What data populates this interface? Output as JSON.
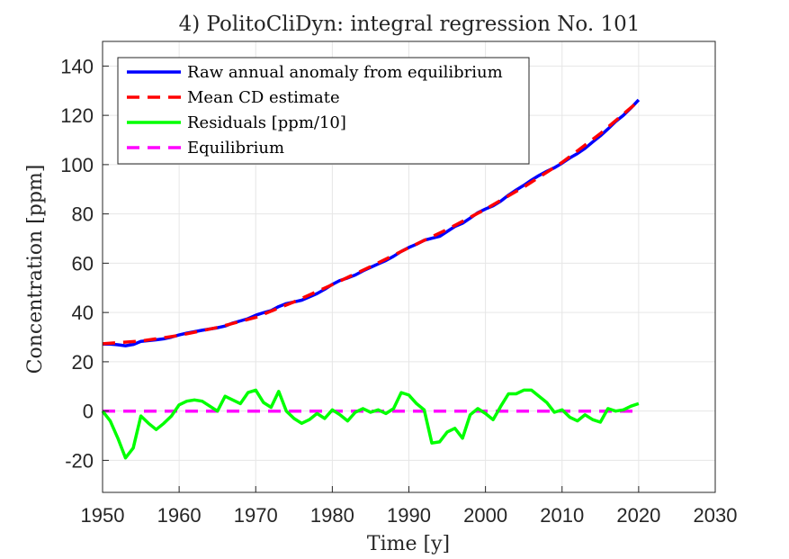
{
  "chart_data": {
    "type": "line",
    "title": "4) PolitoCliDyn: integral regression No. 101",
    "xlabel": "Time [y]",
    "ylabel": "Concentration [ppm]",
    "xlim": [
      1950,
      2030
    ],
    "ylim": [
      -33,
      150
    ],
    "xticks": [
      1950,
      1960,
      1970,
      1980,
      1990,
      2000,
      2010,
      2020,
      2030
    ],
    "yticks": [
      -20,
      0,
      20,
      40,
      60,
      80,
      100,
      120,
      140
    ],
    "grid": true,
    "legend_position": "top-left",
    "series": [
      {
        "name": "Raw annual anomaly from equilibrium",
        "color": "#0000ff",
        "style": "solid",
        "x": [
          1950,
          1951,
          1952,
          1953,
          1954,
          1955,
          1956,
          1957,
          1958,
          1959,
          1960,
          1961,
          1962,
          1963,
          1964,
          1965,
          1966,
          1967,
          1968,
          1969,
          1970,
          1971,
          1972,
          1973,
          1974,
          1975,
          1976,
          1977,
          1978,
          1979,
          1980,
          1981,
          1982,
          1983,
          1984,
          1985,
          1986,
          1987,
          1988,
          1989,
          1990,
          1991,
          1992,
          1993,
          1994,
          1995,
          1996,
          1997,
          1998,
          1999,
          2000,
          2001,
          2002,
          2003,
          2004,
          2005,
          2006,
          2007,
          2008,
          2009,
          2010,
          2011,
          2012,
          2013,
          2014,
          2015,
          2016,
          2017,
          2018,
          2019,
          2020
        ],
        "y": [
          27.2,
          27.2,
          26.9,
          26.5,
          27.0,
          28.3,
          28.6,
          28.9,
          29.3,
          30.0,
          30.9,
          31.6,
          32.2,
          32.8,
          33.3,
          33.8,
          34.5,
          35.7,
          36.6,
          37.5,
          38.9,
          39.9,
          40.8,
          42.4,
          43.6,
          44.3,
          45.0,
          46.3,
          47.7,
          49.4,
          51.4,
          53.0,
          54.0,
          55.2,
          56.9,
          58.3,
          59.7,
          61.1,
          62.8,
          64.8,
          66.4,
          67.7,
          69.3,
          70.1,
          70.9,
          72.9,
          74.9,
          76.2,
          78.3,
          80.5,
          82.0,
          83.3,
          85.2,
          87.6,
          89.7,
          91.6,
          93.7,
          95.6,
          97.3,
          98.7,
          100.6,
          102.7,
          104.5,
          106.6,
          109.2,
          111.7,
          114.5,
          117.5,
          120.0,
          123.0,
          126.3
        ]
      },
      {
        "name": "Mean CD estimate",
        "color": "#ff0000",
        "style": "dashed",
        "x": [
          1950,
          1955,
          1960,
          1965,
          1970,
          1975,
          1980,
          1985,
          1990,
          1995,
          2000,
          2005,
          2010,
          2015,
          2020
        ],
        "y": [
          27.3,
          28.4,
          30.7,
          33.9,
          38.0,
          44.3,
          51.3,
          58.6,
          66.3,
          73.7,
          81.9,
          90.9,
          100.9,
          112.6,
          125.8
        ]
      },
      {
        "name": "Residuals [ppm/10]",
        "color": "#00ff00",
        "style": "solid",
        "x": [
          1950,
          1951,
          1952,
          1953,
          1954,
          1955,
          1956,
          1957,
          1958,
          1959,
          1960,
          1961,
          1962,
          1963,
          1964,
          1965,
          1966,
          1967,
          1968,
          1969,
          1970,
          1971,
          1972,
          1973,
          1974,
          1975,
          1976,
          1977,
          1978,
          1979,
          1980,
          1981,
          1982,
          1983,
          1984,
          1985,
          1986,
          1987,
          1988,
          1989,
          1990,
          1991,
          1992,
          1993,
          1994,
          1995,
          1996,
          1997,
          1998,
          1999,
          2000,
          2001,
          2002,
          2003,
          2004,
          2005,
          2006,
          2007,
          2008,
          2009,
          2010,
          2011,
          2012,
          2013,
          2014,
          2015,
          2016,
          2017,
          2018,
          2019,
          2020
        ],
        "y": [
          0,
          -4,
          -11,
          -19,
          -15,
          -2,
          -5,
          -7.5,
          -5,
          -2,
          2.5,
          4,
          4.5,
          4,
          2,
          0,
          6,
          4.5,
          3,
          7.5,
          8.5,
          3.5,
          1.5,
          8,
          0,
          -3,
          -5,
          -3.5,
          -1,
          -3,
          0.5,
          -1.5,
          -4,
          -0.5,
          1,
          -0.5,
          0.5,
          -1,
          1,
          7.5,
          6.5,
          3,
          0.5,
          -13,
          -12.5,
          -8.5,
          -7,
          -11,
          -1.5,
          1,
          -1,
          -3.5,
          2,
          7,
          7,
          8.5,
          8.5,
          6,
          3.5,
          -0.5,
          0.5,
          -2.5,
          -4,
          -1.5,
          -3.5,
          -4.5,
          1,
          0,
          0.5,
          2,
          3
        ]
      },
      {
        "name": "Equilibrium",
        "color": "#ff00ff",
        "style": "dashed",
        "x": [
          1950,
          2020
        ],
        "y": [
          0,
          0
        ]
      }
    ]
  }
}
